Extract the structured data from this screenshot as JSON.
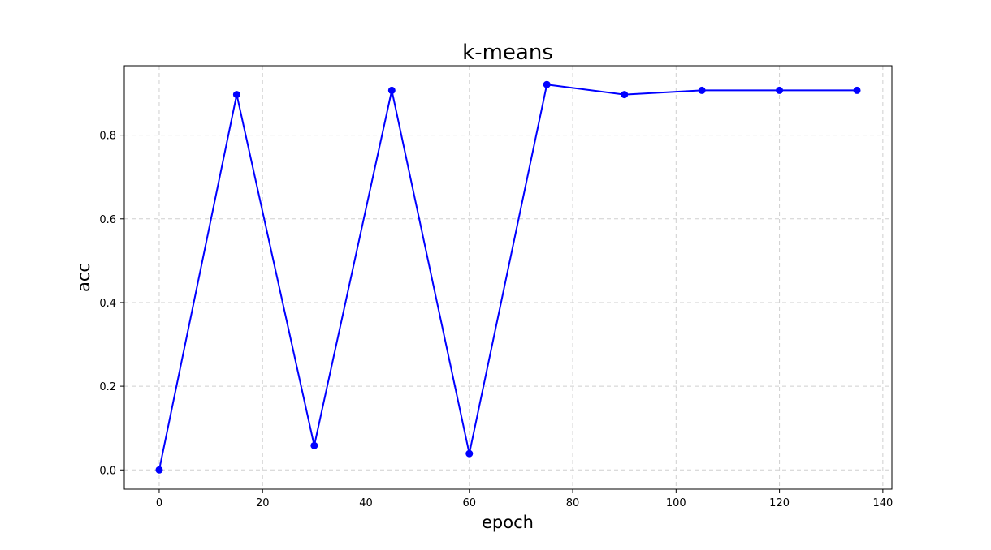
{
  "chart_data": {
    "type": "line",
    "title": "k-means",
    "xlabel": "epoch",
    "ylabel": "acc",
    "xlim": [
      -6.75,
      141.75
    ],
    "ylim": [
      -0.046,
      0.966
    ],
    "xticks": [
      0,
      20,
      40,
      60,
      80,
      100,
      120,
      140
    ],
    "xtick_labels": [
      "0",
      "20",
      "40",
      "60",
      "80",
      "100",
      "120",
      "140"
    ],
    "yticks": [
      0.0,
      0.2,
      0.4,
      0.6,
      0.8
    ],
    "ytick_labels": [
      "0.0",
      "0.2",
      "0.4",
      "0.6",
      "0.8"
    ],
    "grid": true,
    "x": [
      0,
      15,
      30,
      45,
      60,
      75,
      90,
      105,
      120,
      135
    ],
    "series": [
      {
        "values": [
          0.0,
          0.897,
          0.058,
          0.907,
          0.039,
          0.921,
          0.897,
          0.907,
          0.907,
          0.907
        ],
        "color": "#0000ff",
        "marker": "circle"
      }
    ]
  }
}
